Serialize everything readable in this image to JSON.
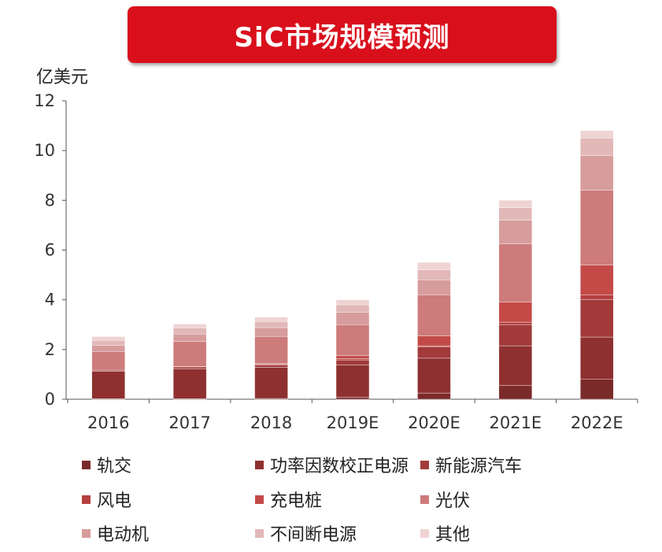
{
  "title": "SiC市场规模预测",
  "unit": "亿美元",
  "chart_data": {
    "type": "bar",
    "stacked": true,
    "title": "SiC市场规模预测",
    "ylabel": "亿美元",
    "ylim": [
      0,
      12
    ],
    "yticks": [
      0,
      2,
      4,
      6,
      8,
      10,
      12
    ],
    "categories": [
      "2016",
      "2017",
      "2018",
      "2019E",
      "2020E",
      "2021E",
      "2022E"
    ],
    "series": [
      {
        "name": "轨交",
        "color": "#7b2a2a",
        "values": [
          0.02,
          0.02,
          0.03,
          0.08,
          0.25,
          0.55,
          0.8
        ]
      },
      {
        "name": "功率因数校正电源",
        "color": "#8f3030",
        "values": [
          1.1,
          1.2,
          1.25,
          1.3,
          1.4,
          1.6,
          1.7
        ]
      },
      {
        "name": "新能源汽车",
        "color": "#a23a3a",
        "values": [
          0.05,
          0.08,
          0.1,
          0.2,
          0.45,
          0.85,
          1.5
        ]
      },
      {
        "name": "风电",
        "color": "#b54040",
        "values": [
          0.0,
          0.0,
          0.02,
          0.05,
          0.05,
          0.1,
          0.2
        ]
      },
      {
        "name": "充电桩",
        "color": "#c44a48",
        "values": [
          0.0,
          0.02,
          0.03,
          0.12,
          0.4,
          0.8,
          1.2
        ]
      },
      {
        "name": "光伏",
        "color": "#cd7b7b",
        "values": [
          0.75,
          1.0,
          1.1,
          1.25,
          1.65,
          2.35,
          3.0
        ]
      },
      {
        "name": "电动机",
        "color": "#d79c9c",
        "values": [
          0.25,
          0.3,
          0.35,
          0.5,
          0.6,
          0.95,
          1.4
        ]
      },
      {
        "name": "不间断电源",
        "color": "#e2b8b8",
        "values": [
          0.2,
          0.25,
          0.25,
          0.3,
          0.4,
          0.5,
          0.7
        ]
      },
      {
        "name": "其他",
        "color": "#efd3d3",
        "values": [
          0.15,
          0.15,
          0.17,
          0.2,
          0.3,
          0.3,
          0.3
        ]
      }
    ]
  }
}
